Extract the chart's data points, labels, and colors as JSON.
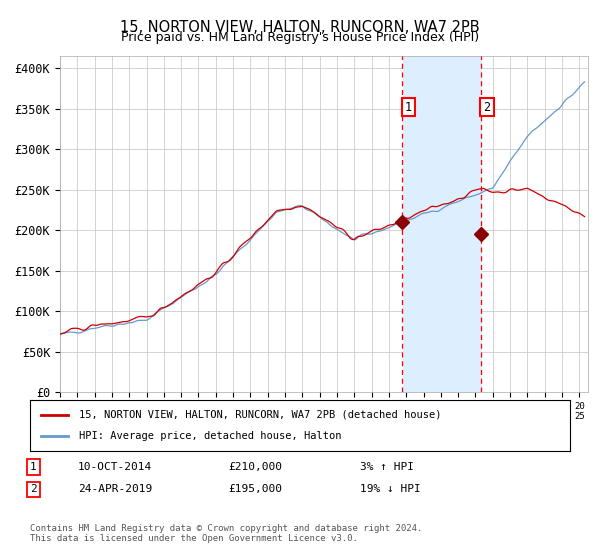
{
  "title": "15, NORTON VIEW, HALTON, RUNCORN, WA7 2PB",
  "subtitle": "Price paid vs. HM Land Registry's House Price Index (HPI)",
  "ytick_values": [
    0,
    50000,
    100000,
    150000,
    200000,
    250000,
    300000,
    350000,
    400000
  ],
  "ylim": [
    0,
    415000
  ],
  "xlim_start": 1995.0,
  "xlim_end": 2025.5,
  "sale1_x": 2014.78,
  "sale1_y": 210000,
  "sale1_label": "1",
  "sale1_date": "10-OCT-2014",
  "sale1_price": "£210,000",
  "sale1_hpi": "3% ↑ HPI",
  "sale2_x": 2019.31,
  "sale2_y": 195000,
  "sale2_label": "2",
  "sale2_date": "24-APR-2019",
  "sale2_price": "£195,000",
  "sale2_hpi": "19% ↓ HPI",
  "line1_color": "#cc0000",
  "line2_color": "#6699cc",
  "shade_color": "#ddeeff",
  "grid_color": "#cccccc",
  "background_color": "#ffffff",
  "legend1_label": "15, NORTON VIEW, HALTON, RUNCORN, WA7 2PB (detached house)",
  "legend2_label": "HPI: Average price, detached house, Halton",
  "footer": "Contains HM Land Registry data © Crown copyright and database right 2024.\nThis data is licensed under the Open Government Licence v3.0."
}
